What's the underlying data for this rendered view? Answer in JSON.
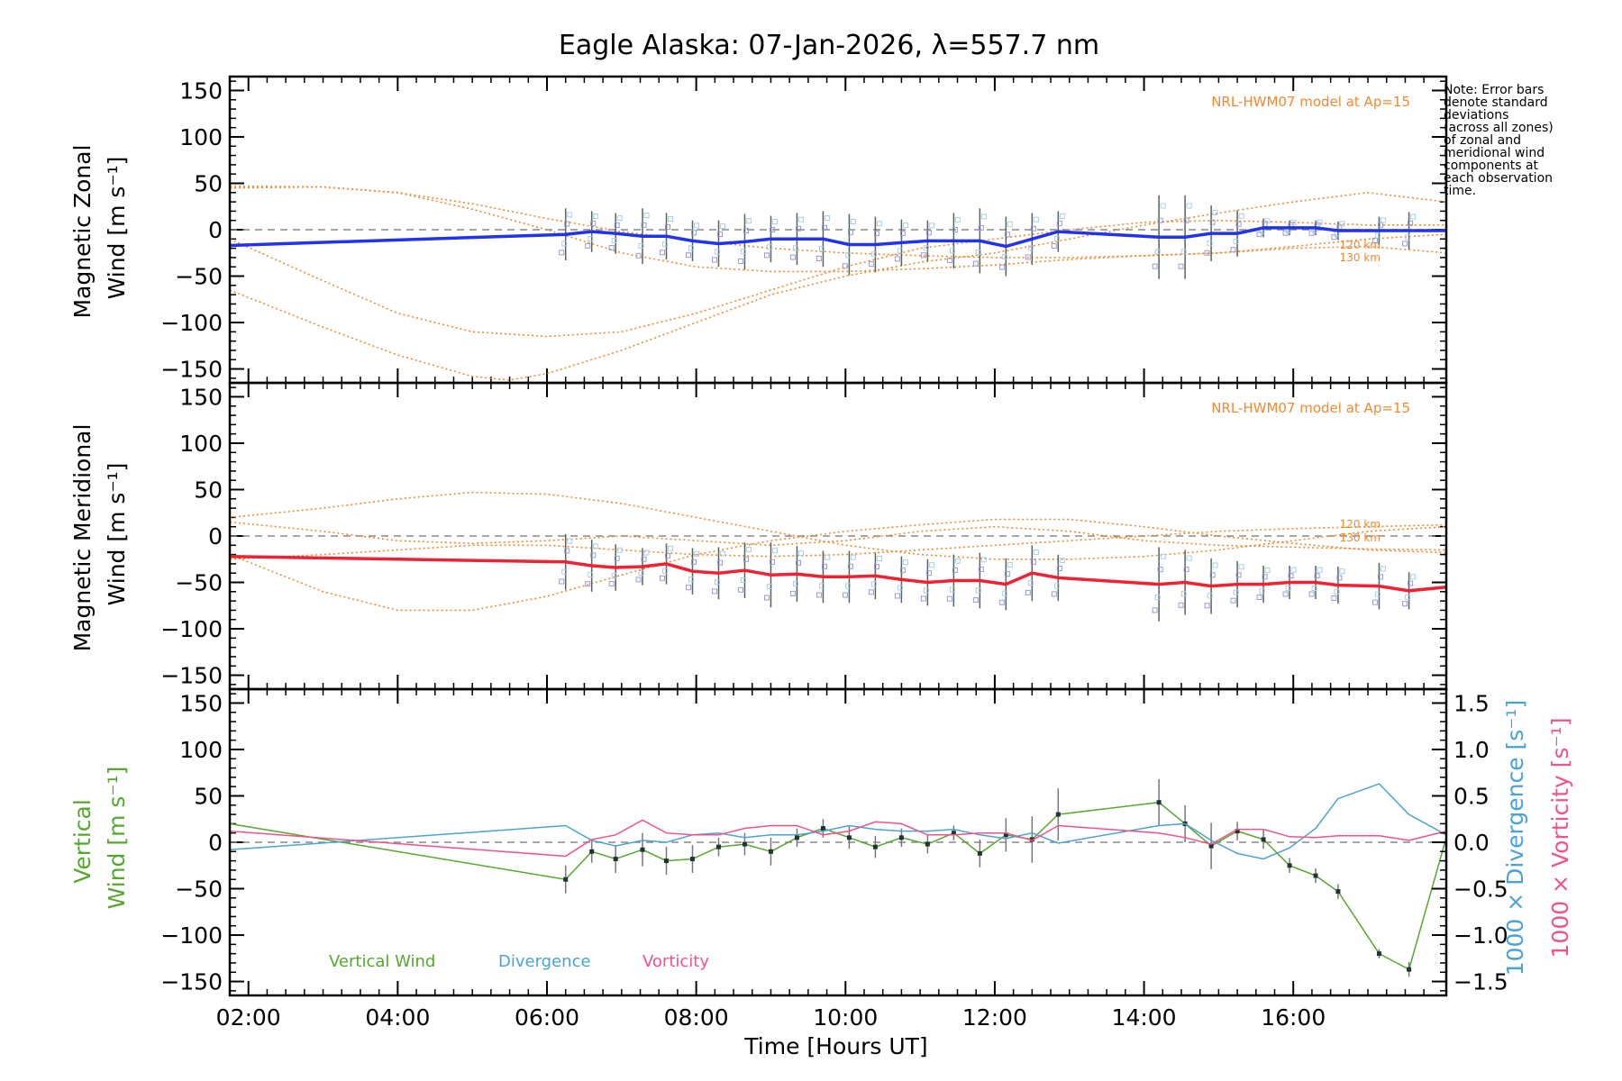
{
  "chart_data": {
    "type": "line",
    "title": "Eagle Alaska: 07-Jan-2026, λ=557.7 nm",
    "note": [
      "Note: Error bars",
      "denote standard",
      "deviations",
      "(across all zones)",
      "of zonal and",
      "meridional wind",
      "components at",
      "each observation",
      "time."
    ],
    "xlabel": "Time [Hours UT]",
    "xlim": [
      1.75,
      18.05
    ],
    "xticks": [
      2,
      4,
      6,
      8,
      10,
      12,
      14,
      16
    ],
    "xtick_labels": [
      "02:00",
      "04:00",
      "06:00",
      "08:00",
      "10:00",
      "12:00",
      "14:00",
      "16:00"
    ],
    "ylim": [
      -165,
      165
    ],
    "yticks": [
      -150,
      -100,
      -50,
      0,
      50,
      100,
      150
    ],
    "ytick_labels": [
      "−150",
      "−100",
      "−50",
      "0",
      "50",
      "100",
      "150"
    ],
    "times": [
      6.25,
      6.6,
      6.92,
      7.28,
      7.6,
      7.95,
      8.3,
      8.65,
      9.0,
      9.35,
      9.7,
      10.05,
      10.4,
      10.75,
      11.1,
      11.45,
      11.8,
      12.15,
      12.5,
      12.85,
      14.2,
      14.55,
      14.9,
      15.25,
      15.6,
      15.95,
      16.3,
      16.6,
      17.15,
      17.55
    ],
    "panels": [
      {
        "ylabel": [
          "Magnetic Zonal",
          "Wind [m s⁻¹]"
        ],
        "model_label": "NRL-HWM07 model at Ap=15",
        "model_alt_labels": [
          "120 km",
          "130 km"
        ],
        "series": [
          {
            "name": "Magnetic Zonal Wind",
            "color": "#2233ee",
            "x": [
              1.75,
              6.25,
              6.6,
              6.92,
              7.28,
              7.6,
              7.95,
              8.3,
              8.65,
              9.0,
              9.35,
              9.7,
              10.05,
              10.4,
              10.75,
              11.1,
              11.45,
              11.8,
              12.15,
              12.5,
              12.85,
              14.2,
              14.55,
              14.9,
              15.25,
              15.6,
              15.95,
              16.3,
              16.6,
              17.15,
              17.55,
              18.05
            ],
            "y": [
              -17,
              -5,
              -2,
              -4,
              -7,
              -7,
              -12,
              -15,
              -13,
              -10,
              -10,
              -10,
              -16,
              -16,
              -14,
              -12,
              -12,
              -12,
              -18,
              -10,
              -2,
              -8,
              -8,
              -4,
              -4,
              2,
              2,
              2,
              -1,
              -1,
              -1,
              -1
            ],
            "err": [
              null,
              28,
              22,
              22,
              30,
              25,
              22,
              25,
              30,
              25,
              28,
              30,
              33,
              30,
              25,
              22,
              30,
              35,
              32,
              28,
              22,
              45,
              45,
              30,
              25,
              10,
              8,
              8,
              10,
              15,
              20,
              null
            ]
          }
        ]
      },
      {
        "ylabel": [
          "Magnetic Meridional",
          "Wind [m s⁻¹]"
        ],
        "model_label": "NRL-HWM07 model at Ap=15",
        "model_alt_labels": [
          "120 km",
          "130 km"
        ],
        "series": [
          {
            "name": "Magnetic Meridional Wind",
            "color": "#ee2233",
            "x": [
              1.75,
              6.25,
              6.6,
              6.92,
              7.28,
              7.6,
              7.95,
              8.3,
              8.65,
              9.0,
              9.35,
              9.7,
              10.05,
              10.4,
              10.75,
              11.1,
              11.45,
              11.8,
              12.15,
              12.5,
              12.85,
              14.2,
              14.55,
              14.9,
              15.25,
              15.6,
              15.95,
              16.3,
              16.6,
              17.15,
              17.55,
              18.05
            ],
            "y": [
              -22,
              -28,
              -32,
              -34,
              -33,
              -30,
              -38,
              -40,
              -37,
              -42,
              -41,
              -44,
              -44,
              -43,
              -47,
              -50,
              -48,
              -48,
              -52,
              -40,
              -45,
              -52,
              -50,
              -54,
              -52,
              -52,
              -50,
              -50,
              -53,
              -54,
              -59,
              -55
            ],
            "err": [
              null,
              30,
              28,
              25,
              20,
              22,
              25,
              28,
              30,
              35,
              30,
              28,
              28,
              25,
              25,
              25,
              28,
              30,
              28,
              30,
              25,
              40,
              35,
              30,
              25,
              20,
              18,
              18,
              20,
              25,
              20,
              null
            ]
          }
        ]
      },
      {
        "ylabel": [
          "Vertical",
          "Wind [m s⁻¹]"
        ],
        "right_axis_labels": [
          "1000 × Divergence [s⁻¹]",
          "1000 × Vorticity [s⁻¹]"
        ],
        "right_ylim": [
          -1.65,
          1.65
        ],
        "right_yticks": [
          -1.5,
          -1.0,
          -0.5,
          0.0,
          0.5,
          1.0,
          1.5
        ],
        "right_ytick_labels": [
          "−1.5",
          "−1.0",
          "−0.5",
          "0.0",
          "0.5",
          "1.0",
          "1.5"
        ],
        "legend": [
          "Vertical Wind",
          "Divergence",
          "Vorticity"
        ],
        "series": [
          {
            "name": "Vertical Wind",
            "color": "#55a82e",
            "x": [
              1.75,
              6.25,
              6.6,
              6.92,
              7.28,
              7.6,
              7.95,
              8.3,
              8.65,
              9.0,
              9.35,
              9.7,
              10.05,
              10.4,
              10.75,
              11.1,
              11.45,
              11.8,
              12.15,
              12.5,
              12.85,
              14.2,
              14.55,
              14.9,
              15.25,
              15.6,
              15.95,
              16.3,
              16.6,
              17.15,
              17.55,
              18.05
            ],
            "y": [
              20,
              -40,
              -10,
              -18,
              -8,
              -20,
              -18,
              -5,
              -2,
              -10,
              5,
              15,
              5,
              -5,
              5,
              -2,
              10,
              -12,
              8,
              3,
              30,
              43,
              20,
              -4,
              12,
              3,
              -25,
              -36,
              -53,
              -120,
              -137,
              5
            ],
            "err": [
              null,
              15,
              12,
              15,
              18,
              15,
              15,
              10,
              12,
              15,
              10,
              10,
              12,
              12,
              10,
              10,
              8,
              15,
              18,
              25,
              28,
              25,
              20,
              25,
              10,
              10,
              8,
              8,
              8,
              5,
              8,
              null
            ]
          },
          {
            "name": "Divergence",
            "color": "#4aa3d4",
            "axis": "right",
            "x": [
              1.75,
              6.25,
              6.6,
              6.92,
              7.28,
              7.6,
              7.95,
              8.3,
              8.65,
              9.0,
              9.35,
              9.7,
              10.05,
              10.4,
              10.75,
              11.1,
              11.45,
              11.8,
              12.15,
              12.5,
              12.85,
              14.2,
              14.55,
              14.9,
              15.25,
              15.6,
              15.95,
              16.3,
              16.6,
              17.15,
              17.55,
              18.05
            ],
            "y": [
              -0.08,
              0.18,
              0.02,
              -0.04,
              0.02,
              0.0,
              0.08,
              0.1,
              0.05,
              0.08,
              0.08,
              0.12,
              0.18,
              0.14,
              0.12,
              0.12,
              0.14,
              0.08,
              0.04,
              0.1,
              -0.01,
              0.18,
              0.2,
              0.02,
              -0.12,
              -0.18,
              -0.06,
              0.15,
              0.47,
              0.63,
              0.3,
              0.08
            ]
          },
          {
            "name": "Vorticity",
            "color": "#f0528e",
            "axis": "right",
            "x": [
              1.75,
              6.25,
              6.6,
              6.92,
              7.28,
              7.6,
              7.95,
              8.3,
              8.65,
              9.0,
              9.35,
              9.7,
              10.05,
              10.4,
              10.75,
              11.1,
              11.45,
              11.8,
              12.15,
              12.5,
              12.85,
              14.2,
              14.55,
              14.9,
              15.25,
              15.6,
              15.95,
              16.3,
              16.6,
              17.15,
              17.55,
              18.05
            ],
            "y": [
              0.12,
              -0.15,
              0.03,
              0.08,
              0.24,
              0.1,
              0.08,
              0.08,
              0.15,
              0.18,
              0.18,
              0.08,
              0.12,
              0.22,
              0.2,
              0.08,
              0.08,
              0.1,
              0.1,
              0.02,
              0.18,
              0.1,
              0.05,
              -0.02,
              0.14,
              0.14,
              0.06,
              0.05,
              0.07,
              0.07,
              0.02,
              0.12
            ]
          }
        ]
      }
    ],
    "model_curves": {
      "zonal": [
        {
          "x": [
            1.75,
            3,
            4,
            5,
            6,
            6.5,
            7,
            8,
            9,
            10,
            11,
            12,
            13,
            14,
            15,
            16,
            17,
            18.05
          ],
          "y": [
            47,
            46,
            40,
            28,
            12,
            5,
            -2,
            -12,
            -20,
            -25,
            -28,
            -30,
            -30,
            -28,
            -25,
            -18,
            -10,
            -5
          ]
        },
        {
          "x": [
            1.75,
            3,
            4,
            5,
            5.5,
            6,
            7,
            8,
            9,
            10,
            11,
            12,
            13,
            14,
            15,
            16,
            17,
            18.05
          ],
          "y": [
            -65,
            -105,
            -135,
            -158,
            -162,
            -155,
            -130,
            -100,
            -70,
            -50,
            -35,
            -25,
            -10,
            5,
            18,
            30,
            40,
            30
          ]
        },
        {
          "x": [
            1.75,
            3,
            4,
            5,
            6,
            7,
            8,
            9,
            10,
            11,
            12,
            13,
            14,
            15,
            16,
            17,
            18.05
          ],
          "y": [
            -10,
            -55,
            -90,
            -110,
            -115,
            -110,
            -90,
            -65,
            -40,
            -20,
            -10,
            0,
            8,
            10,
            8,
            5,
            5
          ]
        },
        {
          "x": [
            1.75,
            3,
            4,
            5,
            6,
            7,
            8,
            9,
            10,
            11,
            12,
            13,
            14,
            15,
            16,
            17,
            18.05
          ],
          "y": [
            45,
            46,
            40,
            22,
            0,
            -25,
            -40,
            -45,
            -45,
            -42,
            -38,
            -32,
            -28,
            -25,
            -20,
            -18,
            -25
          ]
        }
      ],
      "meridional": [
        {
          "x": [
            1.75,
            3,
            4,
            5,
            6,
            7,
            8,
            9,
            10,
            11,
            12,
            13,
            14,
            15,
            16,
            17,
            18.05
          ],
          "y": [
            20,
            30,
            40,
            47,
            45,
            35,
            20,
            5,
            -10,
            -20,
            -25,
            -25,
            -22,
            -15,
            -5,
            5,
            10
          ]
        },
        {
          "x": [
            1.75,
            3,
            4,
            5,
            6,
            7,
            8,
            9,
            10,
            11,
            12,
            13,
            14,
            15,
            16,
            17,
            18.05
          ],
          "y": [
            -20,
            -60,
            -80,
            -80,
            -65,
            -42,
            -20,
            -5,
            5,
            12,
            18,
            18,
            10,
            0,
            -8,
            -15,
            -18
          ]
        },
        {
          "x": [
            1.75,
            3,
            4,
            5,
            6,
            7,
            8,
            9,
            10,
            11,
            12,
            13,
            14,
            15,
            16,
            17,
            18.05
          ],
          "y": [
            15,
            5,
            -5,
            -8,
            -5,
            0,
            -5,
            -10,
            -5,
            5,
            10,
            5,
            -5,
            -10,
            -12,
            -14,
            -15
          ]
        },
        {
          "x": [
            1.75,
            3,
            4,
            5,
            6,
            7,
            8,
            9,
            10,
            11,
            12,
            13,
            14,
            15,
            16,
            17,
            18.05
          ],
          "y": [
            -25,
            -20,
            -15,
            -10,
            -10,
            -15,
            -20,
            -22,
            -20,
            -15,
            -10,
            -5,
            0,
            5,
            8,
            10,
            12
          ]
        }
      ]
    },
    "colors": {
      "model": "#f08a30",
      "zero_line": "#888888",
      "axis": "#000000",
      "zone_markers": "#9999dd"
    }
  }
}
